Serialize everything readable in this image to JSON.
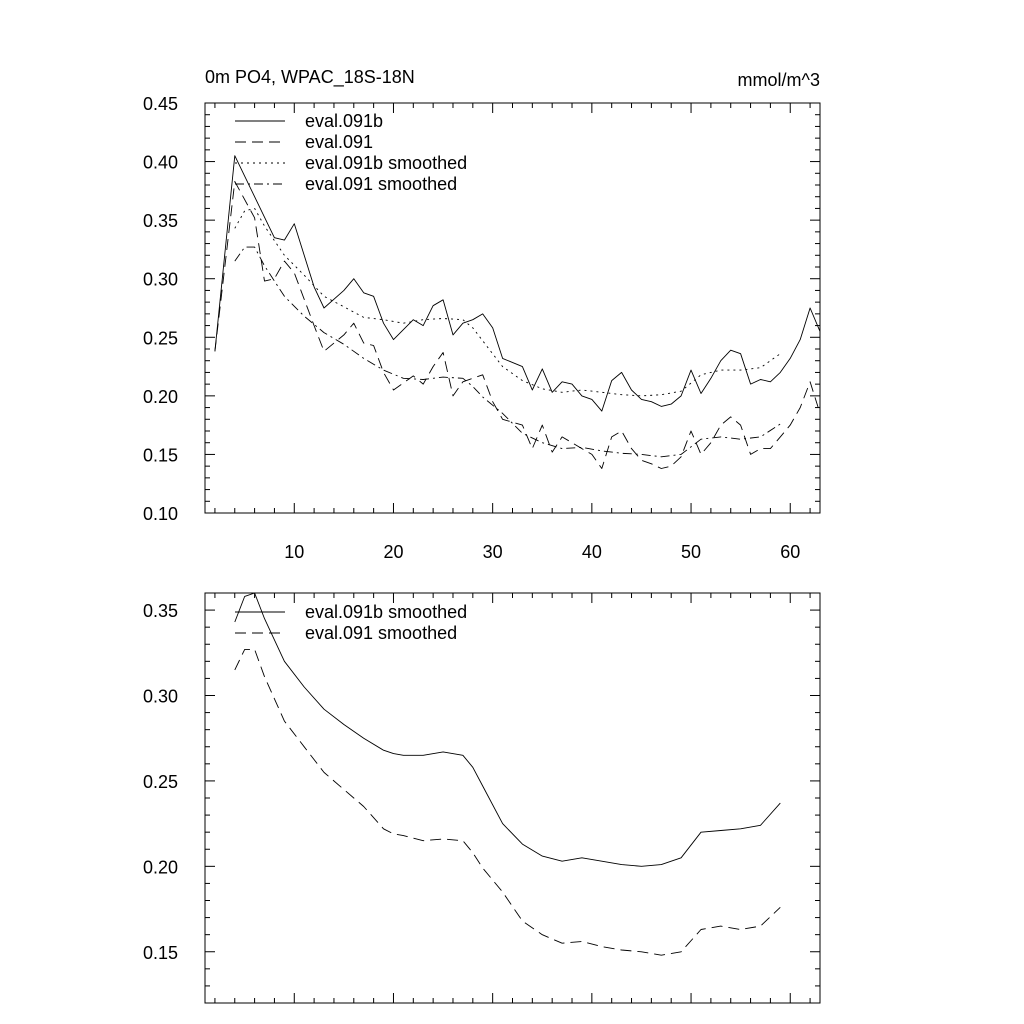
{
  "chart_data": [
    {
      "type": "line",
      "title": "0m PO4, WPAC_18S-18N",
      "units": "mmol/m^3",
      "xlabel": "",
      "ylabel": "",
      "xlim": [
        1,
        63
      ],
      "ylim": [
        0.1,
        0.45
      ],
      "x_ticks": [
        10,
        20,
        30,
        40,
        50,
        60
      ],
      "x_tick_labels": [
        "10",
        "20",
        "30",
        "40",
        "50",
        "60"
      ],
      "y_ticks": [
        0.1,
        0.15,
        0.2,
        0.25,
        0.3,
        0.35,
        0.4,
        0.45
      ],
      "y_tick_labels": [
        "0.10",
        "0.15",
        "0.20",
        "0.25",
        "0.30",
        "0.35",
        "0.40",
        "0.45"
      ],
      "legend_position": "top-left",
      "series": [
        {
          "name": "eval.091b",
          "style": "solid",
          "x": [
            2,
            4,
            6,
            8,
            9,
            10,
            12,
            13,
            15,
            16,
            17,
            18,
            19,
            20,
            22,
            23,
            24,
            25,
            26,
            27,
            28,
            29,
            30,
            31,
            33,
            34,
            35,
            36,
            37,
            38,
            39,
            40,
            41,
            42,
            43,
            44,
            45,
            46,
            47,
            48,
            49,
            50,
            51,
            52,
            53,
            54,
            55,
            56,
            57,
            58,
            59,
            60,
            61,
            62,
            63
          ],
          "values": [
            0.238,
            0.405,
            0.37,
            0.335,
            0.333,
            0.347,
            0.293,
            0.275,
            0.29,
            0.3,
            0.288,
            0.285,
            0.262,
            0.248,
            0.265,
            0.26,
            0.277,
            0.282,
            0.252,
            0.262,
            0.265,
            0.27,
            0.258,
            0.232,
            0.225,
            0.205,
            0.223,
            0.203,
            0.212,
            0.21,
            0.2,
            0.197,
            0.187,
            0.213,
            0.22,
            0.205,
            0.197,
            0.195,
            0.191,
            0.193,
            0.2,
            0.222,
            0.202,
            0.215,
            0.23,
            0.239,
            0.236,
            0.21,
            0.214,
            0.212,
            0.22,
            0.232,
            0.248,
            0.275,
            0.255
          ]
        },
        {
          "name": "eval.091",
          "style": "dashed",
          "x": [
            2,
            4,
            6,
            7,
            8,
            9,
            10,
            12,
            13,
            15,
            16,
            17,
            18,
            19,
            20,
            22,
            23,
            24,
            25,
            26,
            27,
            28,
            29,
            30,
            31,
            33,
            34,
            35,
            36,
            37,
            38,
            39,
            40,
            41,
            42,
            43,
            44,
            45,
            46,
            47,
            48,
            49,
            50,
            51,
            52,
            53,
            54,
            55,
            56,
            57,
            58,
            59,
            60,
            61,
            62,
            63
          ],
          "values": [
            0.238,
            0.383,
            0.352,
            0.298,
            0.3,
            0.315,
            0.305,
            0.26,
            0.238,
            0.252,
            0.262,
            0.245,
            0.243,
            0.22,
            0.205,
            0.217,
            0.21,
            0.225,
            0.237,
            0.2,
            0.212,
            0.215,
            0.218,
            0.195,
            0.18,
            0.175,
            0.155,
            0.175,
            0.152,
            0.165,
            0.16,
            0.155,
            0.15,
            0.138,
            0.165,
            0.17,
            0.155,
            0.145,
            0.142,
            0.138,
            0.14,
            0.148,
            0.17,
            0.15,
            0.16,
            0.175,
            0.182,
            0.175,
            0.15,
            0.155,
            0.155,
            0.165,
            0.175,
            0.19,
            0.212,
            0.185
          ]
        },
        {
          "name": "eval.091b smoothed",
          "style": "dotted",
          "x": [
            4,
            5,
            6,
            7,
            9,
            11,
            13,
            15,
            17,
            19,
            21,
            23,
            25,
            27,
            28,
            29,
            31,
            33,
            35,
            37,
            39,
            41,
            43,
            45,
            47,
            49,
            51,
            53,
            55,
            57,
            59
          ],
          "values": [
            0.343,
            0.358,
            0.36,
            0.345,
            0.32,
            0.303,
            0.285,
            0.276,
            0.267,
            0.265,
            0.262,
            0.265,
            0.266,
            0.265,
            0.258,
            0.247,
            0.225,
            0.213,
            0.206,
            0.203,
            0.205,
            0.203,
            0.201,
            0.2,
            0.201,
            0.204,
            0.218,
            0.222,
            0.222,
            0.224,
            0.236
          ]
        },
        {
          "name": "eval.091 smoothed",
          "style": "dash-dot",
          "x": [
            4,
            5,
            6,
            7,
            9,
            11,
            13,
            15,
            17,
            19,
            21,
            23,
            25,
            27,
            28,
            29,
            31,
            33,
            35,
            37,
            39,
            41,
            43,
            45,
            47,
            49,
            51,
            53,
            55,
            57,
            59
          ],
          "values": [
            0.315,
            0.327,
            0.327,
            0.311,
            0.285,
            0.268,
            0.254,
            0.244,
            0.232,
            0.222,
            0.215,
            0.214,
            0.216,
            0.215,
            0.208,
            0.199,
            0.185,
            0.168,
            0.16,
            0.155,
            0.156,
            0.153,
            0.151,
            0.15,
            0.148,
            0.15,
            0.163,
            0.165,
            0.163,
            0.165,
            0.176
          ]
        }
      ]
    },
    {
      "type": "line",
      "title": "",
      "xlabel": "",
      "ylabel": "",
      "xlim": [
        1,
        63
      ],
      "ylim": [
        0.12,
        0.36
      ],
      "x_ticks": [
        10,
        20,
        30,
        40,
        50,
        60
      ],
      "y_ticks": [
        0.15,
        0.2,
        0.25,
        0.3,
        0.35
      ],
      "y_tick_labels": [
        "0.15",
        "0.20",
        "0.25",
        "0.30",
        "0.35"
      ],
      "legend_position": "top-left",
      "series": [
        {
          "name": "eval.091b smoothed",
          "style": "solid",
          "x": [
            4,
            5,
            6,
            7,
            9,
            11,
            13,
            15,
            17,
            19,
            20,
            21,
            23,
            25,
            27,
            28,
            29,
            31,
            33,
            35,
            37,
            39,
            41,
            43,
            45,
            47,
            49,
            51,
            53,
            55,
            57,
            59
          ],
          "values": [
            0.343,
            0.358,
            0.36,
            0.345,
            0.32,
            0.305,
            0.292,
            0.283,
            0.275,
            0.268,
            0.266,
            0.265,
            0.265,
            0.267,
            0.265,
            0.258,
            0.247,
            0.225,
            0.213,
            0.206,
            0.203,
            0.205,
            0.203,
            0.201,
            0.2,
            0.201,
            0.205,
            0.22,
            0.221,
            0.222,
            0.224,
            0.237
          ]
        },
        {
          "name": "eval.091 smoothed",
          "style": "dashed",
          "x": [
            4,
            5,
            6,
            7,
            9,
            11,
            13,
            15,
            17,
            19,
            20,
            21,
            23,
            25,
            27,
            28,
            29,
            31,
            33,
            35,
            37,
            39,
            41,
            43,
            45,
            47,
            49,
            51,
            53,
            55,
            57,
            59
          ],
          "values": [
            0.315,
            0.327,
            0.327,
            0.311,
            0.285,
            0.27,
            0.255,
            0.245,
            0.235,
            0.222,
            0.219,
            0.218,
            0.215,
            0.216,
            0.215,
            0.208,
            0.199,
            0.185,
            0.168,
            0.16,
            0.155,
            0.156,
            0.153,
            0.151,
            0.15,
            0.148,
            0.15,
            0.163,
            0.165,
            0.163,
            0.165,
            0.176
          ]
        }
      ]
    }
  ]
}
